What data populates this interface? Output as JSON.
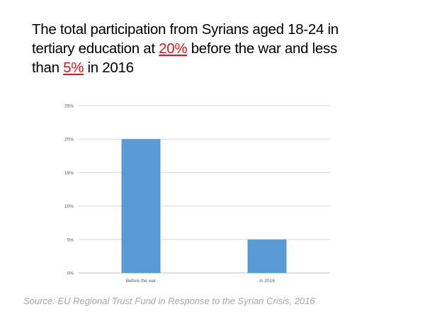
{
  "title": {
    "lines": [
      [
        {
          "text": "The total participation from Syrians aged 18-24 in",
          "highlight": false
        }
      ],
      [
        {
          "text": "tertiary education at ",
          "highlight": false
        },
        {
          "text": "20%",
          "highlight": true
        },
        {
          "text": " before the war and less",
          "highlight": false
        }
      ],
      [
        {
          "text": "than ",
          "highlight": false
        },
        {
          "text": "5%",
          "highlight": true
        },
        {
          "text": " in 2016",
          "highlight": false
        }
      ]
    ],
    "highlight_color": "#d9191e"
  },
  "chart_data": {
    "type": "bar",
    "categories": [
      "Before the war",
      "In 2016"
    ],
    "values": [
      20,
      5
    ],
    "title": "",
    "xlabel": "",
    "ylabel": "",
    "ylim": [
      0,
      25
    ],
    "yticks": [
      "0%",
      "5%",
      "10%",
      "15%",
      "20%",
      "25%"
    ],
    "grid": true,
    "bar_color": "#5b9bd5"
  },
  "source": "Source: EU Regional Trust Fund in Response to the Syrian Crisis, 2016"
}
